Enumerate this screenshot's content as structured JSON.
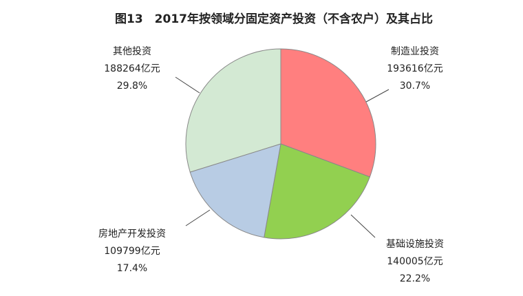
{
  "chart_data": {
    "type": "pie",
    "title": "图13　2017年按领域分固定资产投资（不含农户）及其占比",
    "categories": [
      "制造业投资",
      "基础设施投资",
      "房地产开发投资",
      "其他投资"
    ],
    "values": [
      193616,
      140005,
      109799,
      188264
    ],
    "value_labels": [
      "193616亿元",
      "140005亿元",
      "109799亿元",
      "188264亿元"
    ],
    "percents": [
      30.7,
      22.2,
      17.4,
      29.8
    ],
    "percent_labels": [
      "30.7%",
      "22.2%",
      "17.4%",
      "29.8%"
    ],
    "colors": [
      "#ff7f7f",
      "#92d050",
      "#b8cce4",
      "#d3e9d3"
    ]
  }
}
